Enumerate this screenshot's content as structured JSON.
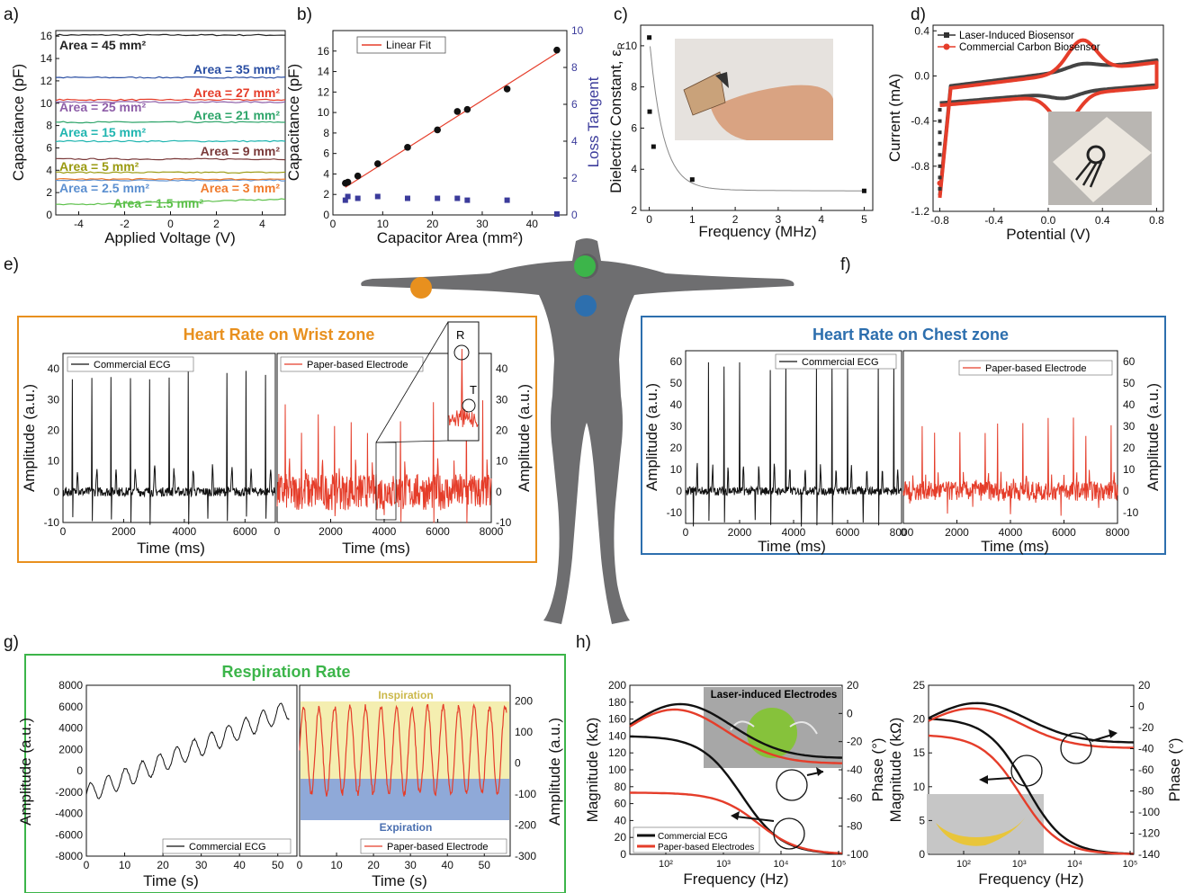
{
  "panel_letters": [
    "a)",
    "b)",
    "c)",
    "d)",
    "e)",
    "f)",
    "g)",
    "h)"
  ],
  "colors": {
    "orange": "#e8901e",
    "blue": "#2d6fae",
    "green": "#3cb54a",
    "red": "#e53d2a",
    "black": "#111111",
    "navy": "#3b3b9b"
  },
  "panel_a": {
    "xlabel": "Applied Voltage (V)",
    "ylabel": "Capacitance (pF)",
    "xticks": [
      "-4",
      "-2",
      "0",
      "2",
      "4"
    ],
    "yticks": [
      "0",
      "2",
      "4",
      "6",
      "8",
      "10",
      "12",
      "14",
      "16"
    ],
    "labels": [
      {
        "text": "Area = 45 mm²",
        "color": "#222222"
      },
      {
        "text": "Area = 35 mm²",
        "color": "#2b4fa3"
      },
      {
        "text": "Area = 27 mm²",
        "color": "#e53d2a"
      },
      {
        "text": "Area = 25 mm²",
        "color": "#8e5ea8"
      },
      {
        "text": "Area = 21 mm²",
        "color": "#2ea56a"
      },
      {
        "text": "Area = 15 mm²",
        "color": "#1fb5b0"
      },
      {
        "text": "Area = 9 mm²",
        "color": "#7a3a3a"
      },
      {
        "text": "Area = 5 mm²",
        "color": "#9a9a10"
      },
      {
        "text": "Area = 2.5 mm²",
        "color": "#5b8fd0"
      },
      {
        "text": "Area = 3 mm²",
        "color": "#f07a2c"
      },
      {
        "text": "Area = 1.5 mm²",
        "color": "#5cc04a"
      }
    ]
  },
  "panel_b": {
    "xlabel": "Capacitor Area (mm²)",
    "ylabel": "Capacitance (pF)",
    "y2label": "Loss Tangent",
    "legend": "Linear Fit",
    "xticks": [
      "0",
      "10",
      "20",
      "30",
      "40"
    ],
    "yticks": [
      "0",
      "2",
      "4",
      "6",
      "8",
      "10",
      "12",
      "14",
      "16"
    ],
    "y2ticks": [
      "0",
      "2",
      "4",
      "6",
      "8",
      "10"
    ]
  },
  "panel_c": {
    "xlabel": "Frequency (MHz)",
    "ylabel": "Dielectric Constant, ε",
    "ylabel_sub": "R",
    "xticks": [
      "0",
      "1",
      "2",
      "3",
      "4",
      "5"
    ],
    "yticks": [
      "2",
      "4",
      "6",
      "8",
      "10"
    ]
  },
  "panel_d": {
    "xlabel": "Potential (V)",
    "ylabel": "Current (mA)",
    "legend": [
      "Laser-Induced Biosensor",
      "Commercial Carbon Biosensor"
    ],
    "xticks": [
      "-0.8",
      "-0.4",
      "0.0",
      "0.4",
      "0.8"
    ],
    "yticks": [
      "-1.2",
      "-0.8",
      "-0.4",
      "0.0",
      "0.4"
    ]
  },
  "panel_e": {
    "title": "Heart Rate on Wrist zone",
    "left_legend": "Commercial ECG",
    "right_legend": "Paper-based Electrode",
    "xlabel": "Time (ms)",
    "ylabel": "Amplitude (a.u.)",
    "left_xticks": [
      "0",
      "2000",
      "4000",
      "6000"
    ],
    "right_xticks": [
      "0",
      "2000",
      "4000",
      "6000",
      "8000"
    ],
    "yticks": [
      "-10",
      "0",
      "10",
      "20",
      "30",
      "40"
    ],
    "inset_labels": [
      "R",
      "T"
    ]
  },
  "panel_f": {
    "title": "Heart Rate on Chest zone",
    "left_legend": "Commercial ECG",
    "right_legend": "Paper-based Electrode",
    "xlabel": "Time (ms)",
    "ylabel": "Amplitude (a.u.)",
    "left_xticks": [
      "0",
      "2000",
      "4000",
      "6000",
      "8000"
    ],
    "right_xticks": [
      "0",
      "2000",
      "4000",
      "6000",
      "8000"
    ],
    "yticks": [
      "-10",
      "0",
      "10",
      "20",
      "30",
      "40",
      "50",
      "60"
    ]
  },
  "panel_g": {
    "title": "Respiration Rate",
    "left_legend": "Commercial ECG",
    "right_legend": "Paper-based Electrode",
    "xlabel": "Time (s)",
    "ylabel": "Amplitude (a.u.)",
    "xticks": [
      "0",
      "10",
      "20",
      "30",
      "40",
      "50"
    ],
    "left_yticks": [
      "-8000",
      "-6000",
      "-4000",
      "-2000",
      "0",
      "2000",
      "4000",
      "6000",
      "8000"
    ],
    "right_yticks": [
      "-300",
      "-200",
      "-100",
      "0",
      "100",
      "200"
    ],
    "inspiration": "Inspiration",
    "expiration": "Expiration"
  },
  "panel_h": {
    "left": {
      "xlabel": "Frequency (Hz)",
      "ylabel": "Magnitude (kΩ)",
      "y2label": "Phase (°)",
      "yticks": [
        "0",
        "20",
        "40",
        "60",
        "80",
        "100",
        "120",
        "140",
        "160",
        "180",
        "200"
      ],
      "y2ticks": [
        "-100",
        "-80",
        "-60",
        "-40",
        "-20",
        "0",
        "20"
      ],
      "xticks": [
        "10²",
        "10³",
        "10⁴",
        "10⁵"
      ],
      "legend": [
        "Commercial ECG",
        "Paper-based Electrodes"
      ],
      "inset_title": "Laser-induced Electrodes"
    },
    "right": {
      "xlabel": "Frequency (Hz)",
      "ylabel": "Magnitude (kΩ)",
      "y2label": "Phase (°)",
      "yticks": [
        "0",
        "5",
        "10",
        "15",
        "20",
        "25"
      ],
      "y2ticks": [
        "-140",
        "-120",
        "-100",
        "-80",
        "-60",
        "-40",
        "-20",
        "0",
        "20"
      ],
      "xticks": [
        "10²",
        "10³",
        "10⁴",
        "10⁵"
      ]
    }
  },
  "chart_data": [
    {
      "type": "line",
      "panel": "a",
      "xlabel": "Applied Voltage (V)",
      "ylabel": "Capacitance (pF)",
      "xlim": [
        -5,
        5
      ],
      "ylim": [
        0,
        16.5
      ],
      "series": [
        {
          "name": "Area = 45 mm²",
          "x": [
            -5,
            5
          ],
          "values": [
            16.1,
            16.1
          ]
        },
        {
          "name": "Area = 35 mm²",
          "x": [
            -5,
            5
          ],
          "values": [
            12.3,
            12.3
          ]
        },
        {
          "name": "Area = 27 mm²",
          "x": [
            -5,
            5
          ],
          "values": [
            10.3,
            10.3
          ]
        },
        {
          "name": "Area = 25 mm²",
          "x": [
            -5,
            5
          ],
          "values": [
            10.1,
            10.1
          ]
        },
        {
          "name": "Area = 21 mm²",
          "x": [
            -5,
            5
          ],
          "values": [
            8.3,
            8.3
          ]
        },
        {
          "name": "Area = 15 mm²",
          "x": [
            -5,
            5
          ],
          "values": [
            6.6,
            6.6
          ]
        },
        {
          "name": "Area = 9 mm²",
          "x": [
            -5,
            5
          ],
          "values": [
            5.0,
            5.0
          ]
        },
        {
          "name": "Area = 5 mm²",
          "x": [
            -5,
            5
          ],
          "values": [
            3.8,
            3.8
          ]
        },
        {
          "name": "Area = 2.5 mm²",
          "x": [
            -5,
            5
          ],
          "values": [
            3.1,
            3.1
          ]
        },
        {
          "name": "Area = 3 mm²",
          "x": [
            -5,
            5
          ],
          "values": [
            3.2,
            3.2
          ]
        },
        {
          "name": "Area = 1.5 mm²",
          "x": [
            -5,
            5
          ],
          "values": [
            0.9,
            1.4
          ]
        }
      ]
    },
    {
      "type": "scatter",
      "panel": "b",
      "xlabel": "Capacitor Area (mm²)",
      "ylabel": "Capacitance (pF)",
      "y2label": "Loss Tangent",
      "xlim": [
        0,
        47
      ],
      "ylim": [
        0,
        18
      ],
      "y2lim": [
        0,
        10
      ],
      "x": [
        2.5,
        3,
        5,
        9,
        15,
        21,
        25,
        27,
        35,
        45
      ],
      "series": [
        {
          "name": "Capacitance",
          "values": [
            3.1,
            3.2,
            3.8,
            5.0,
            6.6,
            8.3,
            10.1,
            10.3,
            12.3,
            16.1
          ]
        },
        {
          "name": "Loss Tangent",
          "values": [
            0.8,
            1.0,
            0.9,
            1.0,
            0.9,
            0.9,
            0.9,
            0.8,
            0.8,
            0.05
          ]
        },
        {
          "name": "Linear Fit",
          "x": [
            2.5,
            45
          ],
          "values": [
            2.7,
            15.8
          ]
        }
      ]
    },
    {
      "type": "scatter",
      "panel": "c",
      "xlabel": "Frequency (MHz)",
      "ylabel": "Dielectric Constant, εR",
      "xlim": [
        -0.2,
        5.2
      ],
      "ylim": [
        2,
        11
      ],
      "x": [
        0.001,
        0.01,
        0.1,
        1,
        5
      ],
      "values": [
        10.4,
        6.8,
        5.1,
        3.5,
        2.95
      ]
    },
    {
      "type": "line",
      "panel": "d",
      "xlabel": "Potential (V)",
      "ylabel": "Current (mA)",
      "xlim": [
        -0.85,
        0.85
      ],
      "ylim": [
        -1.2,
        0.45
      ],
      "series": [
        {
          "name": "Laser-Induced Biosensor"
        },
        {
          "name": "Commercial Carbon Biosensor"
        }
      ]
    },
    {
      "type": "line",
      "panel": "e",
      "xlabel": "Time (ms)",
      "ylabel": "Amplitude (a.u.)",
      "ylim": [
        -10,
        45
      ],
      "series": [
        {
          "name": "Commercial ECG",
          "xlim": [
            0,
            7000
          ]
        },
        {
          "name": "Paper-based Electrode",
          "xlim": [
            0,
            8000
          ]
        }
      ]
    },
    {
      "type": "line",
      "panel": "f",
      "xlabel": "Time (ms)",
      "ylabel": "Amplitude (a.u.)",
      "ylim": [
        -15,
        65
      ],
      "series": [
        {
          "name": "Commercial ECG",
          "xlim": [
            0,
            8000
          ]
        },
        {
          "name": "Paper-based Electrode",
          "xlim": [
            0,
            8000
          ]
        }
      ]
    },
    {
      "type": "line",
      "panel": "g",
      "xlabel": "Time (s)",
      "ylabel": "Amplitude (a.u.)",
      "series": [
        {
          "name": "Commercial ECG",
          "ylim": [
            -8000,
            8000
          ]
        },
        {
          "name": "Paper-based Electrode",
          "ylim": [
            -300,
            250
          ]
        }
      ],
      "xlim": [
        0,
        55
      ]
    },
    {
      "type": "line",
      "panel": "h",
      "xlabel": "Frequency (Hz)",
      "ylabel": "Magnitude (kΩ)",
      "y2label": "Phase (°)",
      "xscale": "log",
      "series": [
        {
          "name": "Commercial ECG"
        },
        {
          "name": "Paper-based Electrodes"
        }
      ]
    }
  ]
}
